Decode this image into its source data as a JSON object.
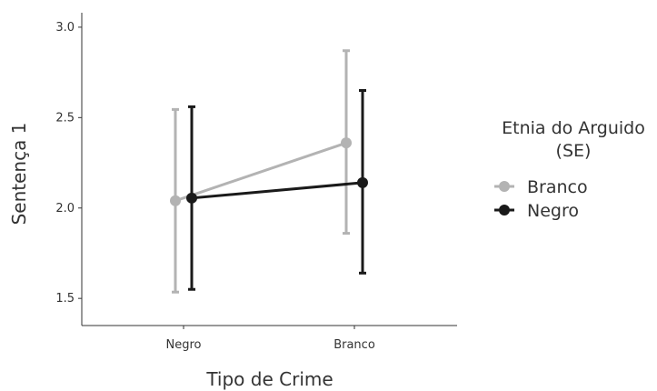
{
  "chart_data": {
    "type": "line",
    "categories": [
      "Negro",
      "Branco"
    ],
    "xlabel": "Tipo de Crime",
    "ylabel": "Sentença 1",
    "ylim": [
      1.35,
      3.08
    ],
    "yticks": [
      "1.5",
      "2.0",
      "2.5",
      "3.0"
    ],
    "grid": false,
    "legend": {
      "title_line1": "Etnia do Arguido",
      "title_line2": "(SE)",
      "position": "right"
    },
    "series": [
      {
        "name": "Branco",
        "color": "#b3b3b3",
        "mean": [
          2.04,
          2.36
        ],
        "lower": [
          1.535,
          1.86
        ],
        "upper": [
          2.545,
          2.87
        ]
      },
      {
        "name": "Negro",
        "color": "#1a1a1a",
        "mean": [
          2.055,
          2.14
        ],
        "lower": [
          1.55,
          1.64
        ],
        "upper": [
          2.56,
          2.65
        ]
      }
    ]
  }
}
